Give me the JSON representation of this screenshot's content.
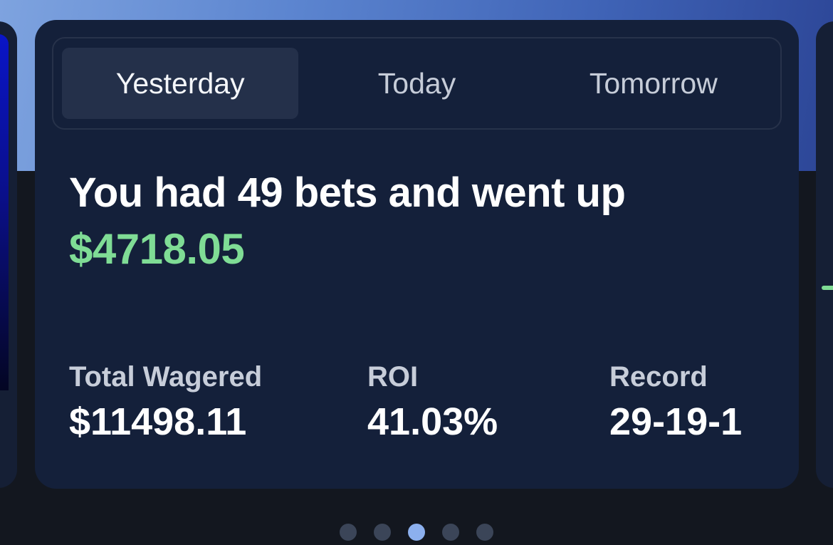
{
  "tabs": [
    {
      "label": "Yesterday",
      "active": true
    },
    {
      "label": "Today",
      "active": false
    },
    {
      "label": "Tomorrow",
      "active": false
    }
  ],
  "summary": {
    "headline": "You had 49 bets and went up",
    "amount": "$4718.05"
  },
  "stats": [
    {
      "label": "Total Wagered",
      "value": "$11498.11"
    },
    {
      "label": "ROI",
      "value": "41.03%"
    },
    {
      "label": "Record",
      "value": "29-19-1"
    }
  ],
  "pagination": {
    "count": 5,
    "active_index": 2
  },
  "colors": {
    "card_background": "#14203a",
    "positive_amount": "#7fdc95",
    "active_dot": "#8cb0ee",
    "inactive_dot": "#3b4558"
  }
}
